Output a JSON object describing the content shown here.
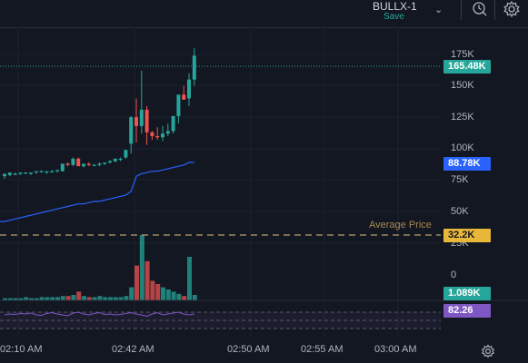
{
  "header": {
    "layout_name": "BULLX-1",
    "save_label": "Save",
    "icons": [
      "chevron-down-icon",
      "alert-clock-icon",
      "gear-icon"
    ]
  },
  "price_axis": {
    "ticks": [
      "175K",
      "150K",
      "125K",
      "100K",
      "75K",
      "50K",
      "25K",
      "0"
    ]
  },
  "badges": {
    "last_price": "165.48K",
    "avg_line_value": "88.78K",
    "average_price": "32.2K",
    "volume": "1.089K",
    "indicator": "82.26"
  },
  "average_price_label": "Average Price",
  "time_axis": {
    "ticks": [
      "02:10 AM",
      "02:42 AM",
      "02:50 AM",
      "02:55 AM",
      "03:00 AM"
    ]
  },
  "colors": {
    "background": "#131722",
    "up": "#26a69a",
    "down": "#ef5350",
    "average_line": "#2962ff",
    "average_price": "#b8a06a",
    "indicator": "#7e57c2",
    "grid": "#1e222d"
  }
}
